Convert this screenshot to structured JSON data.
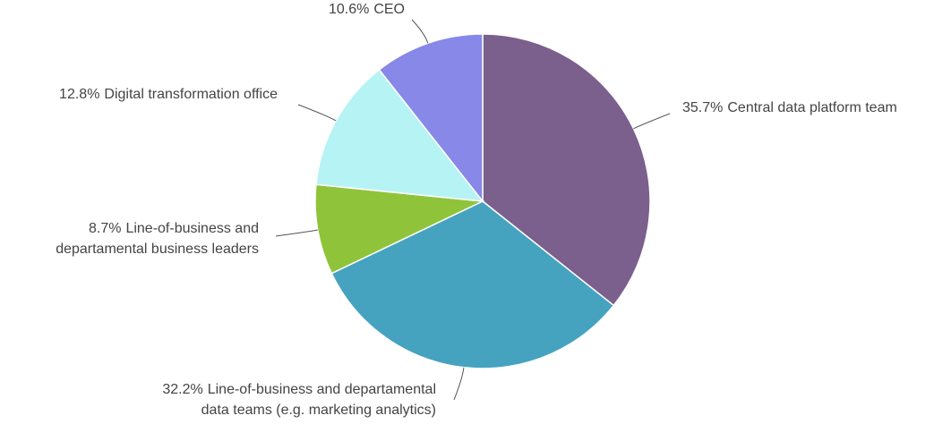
{
  "chart_data": {
    "type": "pie",
    "categories": [
      [
        "Central data platform team"
      ],
      [
        "Line-of-business and departamental",
        "data teams (e.g. marketing analytics)"
      ],
      [
        "Line-of-business and",
        "departamental business leaders"
      ],
      [
        "Digital transformation office"
      ],
      [
        "CEO"
      ]
    ],
    "values": [
      35.7,
      32.2,
      8.7,
      12.8,
      10.6
    ],
    "value_labels": [
      "35.7%",
      "32.2%",
      "8.7%",
      "12.8%",
      "10.6%"
    ],
    "colors": [
      "#7b5f8c",
      "#46a3c0",
      "#8fc43a",
      "#b6f3f5",
      "#8888e8"
    ]
  }
}
